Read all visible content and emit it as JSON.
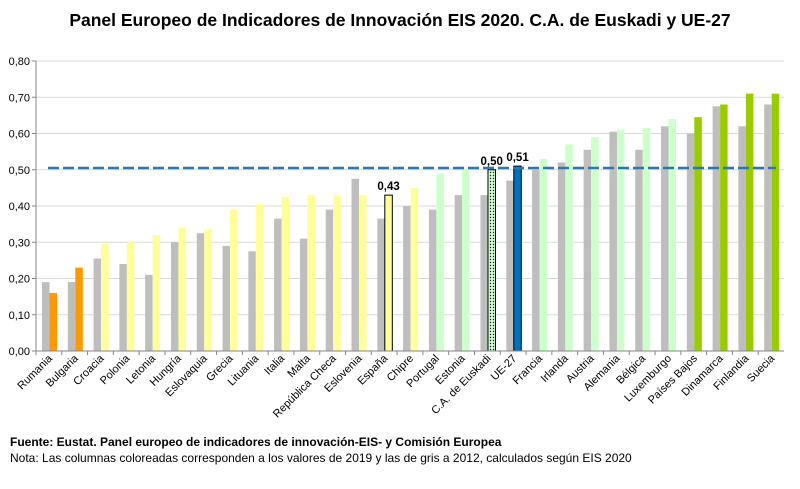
{
  "chart_data": {
    "type": "bar",
    "title": "Panel Europeo de Indicadores de Innovación EIS 2020. C.A. de Euskadi y UE-27",
    "ylim": [
      0,
      0.8
    ],
    "yticks": [
      "0,00",
      "0,10",
      "0,20",
      "0,30",
      "0,40",
      "0,50",
      "0,60",
      "0,70",
      "0,80"
    ],
    "categories": [
      "Rumania",
      "Bulgaria",
      "Croacia",
      "Polonia",
      "Letonia",
      "Hungría",
      "Eslovaquia",
      "Grecia",
      "Lituania",
      "Italia",
      "Malta",
      "República Checa",
      "Eslovenia",
      "España",
      "Chipre",
      "Portugal",
      "Estonia",
      "C.A. de Euskadi",
      "UE-27",
      "Francia",
      "Irlanda",
      "Austria",
      "Alemania",
      "Bélgica",
      "Luxemburgo",
      "Países Bajos",
      "Dinamarca",
      "Finlandia",
      "Suecia"
    ],
    "series": [
      {
        "name": "2012",
        "values": [
          0.19,
          0.19,
          0.255,
          0.24,
          0.21,
          0.3,
          0.325,
          0.29,
          0.275,
          0.365,
          0.31,
          0.39,
          0.475,
          0.365,
          0.4,
          0.39,
          0.43,
          0.43,
          0.47,
          0.5,
          0.52,
          0.555,
          0.605,
          0.555,
          0.62,
          0.6,
          0.675,
          0.62,
          0.68
        ]
      },
      {
        "name": "2019",
        "values": [
          0.16,
          0.23,
          0.295,
          0.3,
          0.32,
          0.34,
          0.335,
          0.39,
          0.405,
          0.425,
          0.43,
          0.43,
          0.43,
          0.43,
          0.45,
          0.49,
          0.5,
          0.5,
          0.51,
          0.53,
          0.57,
          0.59,
          0.61,
          0.615,
          0.64,
          0.645,
          0.68,
          0.71,
          0.71
        ]
      }
    ],
    "reference_line": {
      "label": "UE-27",
      "value": 0.505
    },
    "data_labels": [
      {
        "category": "España",
        "text": "0,43"
      },
      {
        "category": "C.A. de Euskadi",
        "text": "0,50"
      },
      {
        "category": "UE-27",
        "text": "0,51"
      }
    ],
    "colors": {
      "grey": "#bebebe",
      "orange": "#ff9900",
      "yellow": "#ffff99",
      "light_green": "#ccffcc",
      "green": "#99cc00",
      "blue": "#0070c0",
      "ref_line": "#2e75b6",
      "axis": "#868686",
      "grid": "#d9d9d9"
    },
    "color_groups": {
      "orange": [
        "Rumania",
        "Bulgaria"
      ],
      "yellow": [
        "Croacia",
        "Polonia",
        "Letonia",
        "Hungría",
        "Eslovaquia",
        "Grecia",
        "Lituania",
        "Italia",
        "Malta",
        "República Checa",
        "Eslovenia",
        "España",
        "Chipre"
      ],
      "light_green": [
        "Portugal",
        "Estonia",
        "C.A. de Euskadi",
        "Francia",
        "Irlanda",
        "Austria",
        "Alemania",
        "Bélgica",
        "Luxemburgo"
      ],
      "green": [
        "Países Bajos",
        "Dinamarca",
        "Finlandia",
        "Suecia"
      ],
      "blue": [
        "UE-27"
      ],
      "outlined": [
        "España",
        "C.A. de Euskadi"
      ],
      "hatched": [
        "C.A. de Euskadi"
      ]
    }
  },
  "footer": {
    "source": "Fuente: Eustat. Panel europeo de indicadores de innovación-EIS- y Comisión Europea",
    "note": "Nota: Las columnas coloreadas corresponden a los valores de 2019 y las de gris a 2012, calculados según EIS 2020"
  }
}
